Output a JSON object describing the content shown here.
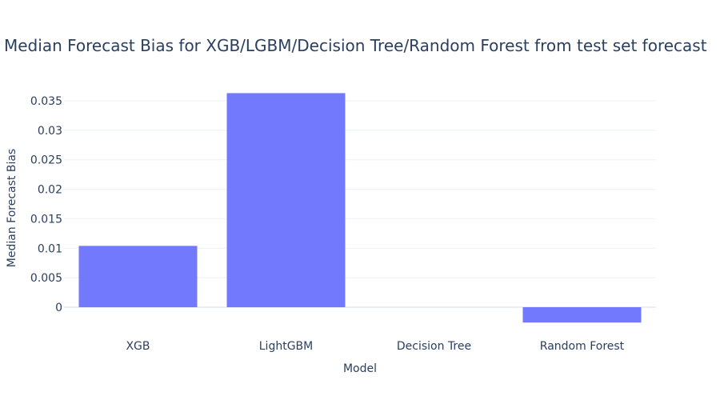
{
  "chart_data": {
    "type": "bar",
    "title": "Median Forecast Bias for XGB/LGBM/Decision Tree/Random Forest from test set forecast",
    "xlabel": "Model",
    "ylabel": "Median Forecast Bias",
    "categories": [
      "XGB",
      "LightGBM",
      "Decision Tree",
      "Random Forest"
    ],
    "values": [
      0.0104,
      0.0363,
      0.0,
      -0.0026
    ],
    "ylim": [
      -0.0026,
      0.0363
    ],
    "yticks": [
      0,
      0.005,
      0.01,
      0.015,
      0.02,
      0.025,
      0.03,
      0.035
    ],
    "ytick_labels": [
      "0",
      "0.005",
      "0.01",
      "0.015",
      "0.02",
      "0.025",
      "0.03",
      "0.035"
    ],
    "grid": true,
    "bar_color": "#7279fc"
  }
}
